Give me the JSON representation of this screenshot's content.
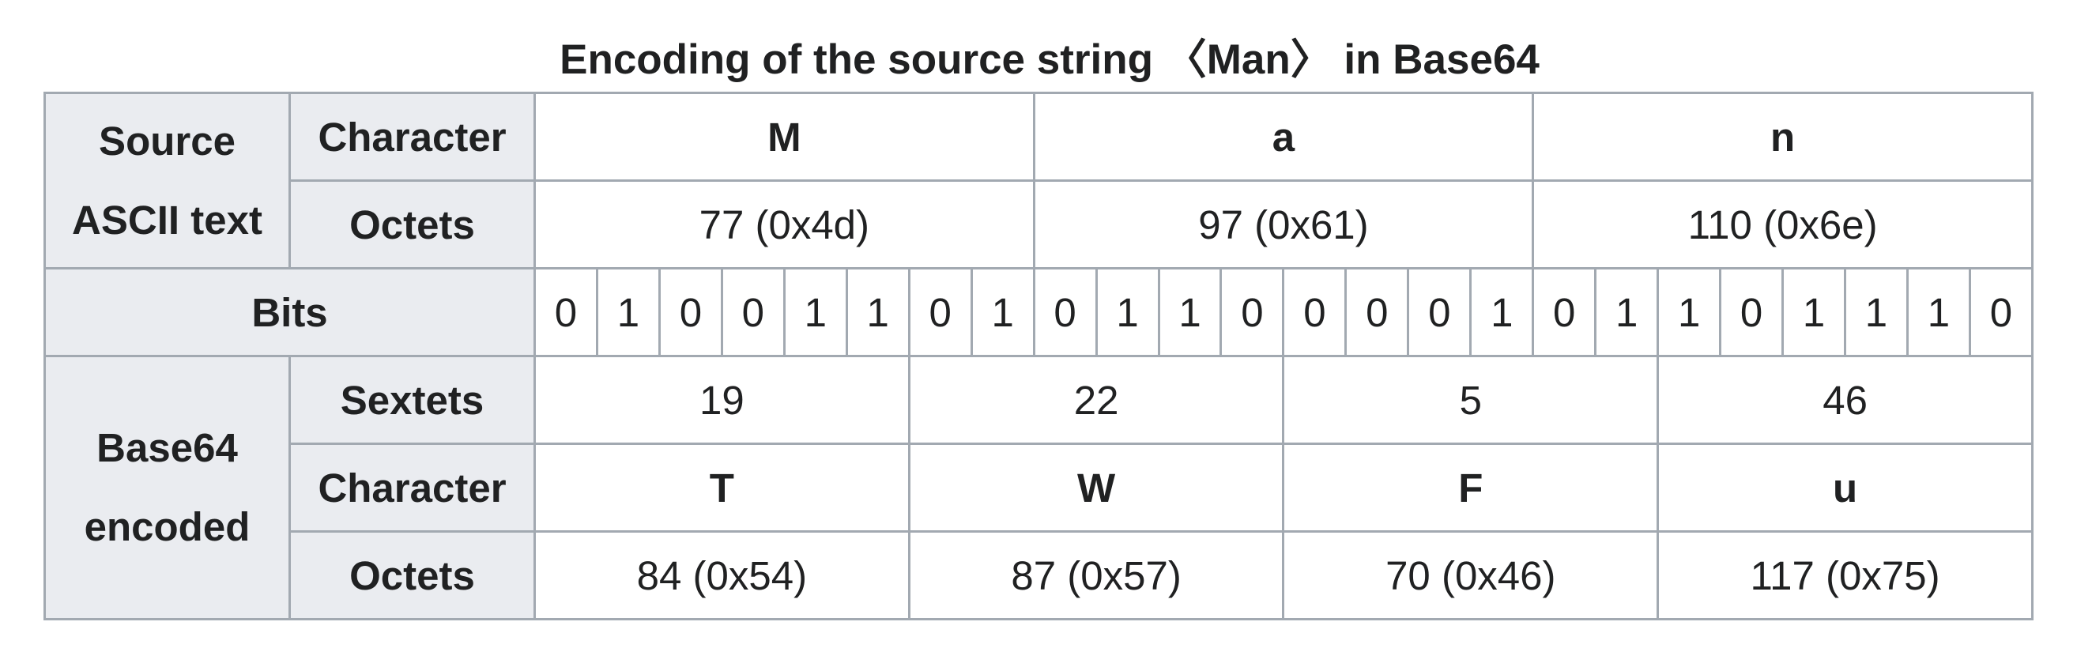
{
  "caption": "Encoding of the source string 〈Man〉 in Base64",
  "source_group": {
    "label_line1": "Source",
    "label_line2": "ASCII text",
    "character_label": "Character",
    "octets_label": "Octets",
    "characters": [
      "M",
      "a",
      "n"
    ],
    "octets": [
      "77 (0x4d)",
      "97 (0x61)",
      "110 (0x6e)"
    ]
  },
  "bits": {
    "label": "Bits",
    "values": [
      "0",
      "1",
      "0",
      "0",
      "1",
      "1",
      "0",
      "1",
      "0",
      "1",
      "1",
      "0",
      "0",
      "0",
      "0",
      "1",
      "0",
      "1",
      "1",
      "0",
      "1",
      "1",
      "1",
      "0"
    ]
  },
  "encoded_group": {
    "label_line1": "Base64",
    "label_line2": "encoded",
    "sextets_label": "Sextets",
    "character_label": "Character",
    "octets_label": "Octets",
    "sextets": [
      "19",
      "22",
      "5",
      "46"
    ],
    "characters": [
      "T",
      "W",
      "F",
      "u"
    ],
    "octets": [
      "84 (0x54)",
      "87 (0x57)",
      "70 (0x46)",
      "117 (0x75)"
    ]
  }
}
